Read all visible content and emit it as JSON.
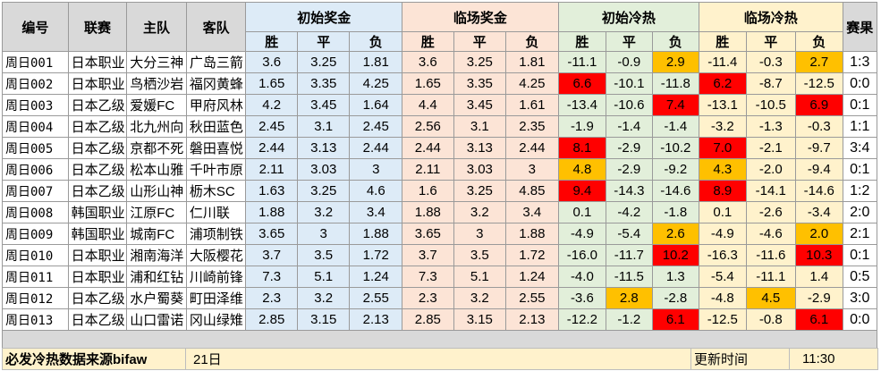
{
  "header": {
    "col_id": "编号",
    "col_league": "联赛",
    "col_home": "主队",
    "col_away": "客队",
    "group_init_odds": "初始奖金",
    "group_live_odds": "临场奖金",
    "group_init_heat": "初始冷热",
    "group_live_heat": "临场冷热",
    "col_result": "赛果",
    "sub_win": "胜",
    "sub_draw": "平",
    "sub_lose": "负"
  },
  "colors": {
    "header_gray": "#d9d9d9",
    "odds_blue": "#ddebf7",
    "odds_peach": "#fce4d6",
    "heat_green": "#e2efda",
    "heat_yellow": "#fff2cc",
    "hot_red": "#ff0000",
    "warm_orange": "#ffc000"
  },
  "rows": [
    {
      "id": "周日001",
      "league": "日本职业",
      "home": "大分三神",
      "away": "广岛三箭",
      "init": [
        "3.6",
        "3.25",
        "1.81"
      ],
      "live": [
        "3.6",
        "3.25",
        "1.81"
      ],
      "iheat": [
        "-11.1",
        "-0.9",
        "2.9"
      ],
      "ihl": [
        "",
        "",
        "orange"
      ],
      "lheat": [
        "-11.4",
        "-0.3",
        "2.7"
      ],
      "lhl": [
        "",
        "",
        "orange"
      ],
      "result": "1:3"
    },
    {
      "id": "周日002",
      "league": "日本职业",
      "home": "鸟栖沙岩",
      "away": "福冈黄蜂",
      "init": [
        "1.65",
        "3.35",
        "4.25"
      ],
      "live": [
        "1.65",
        "3.35",
        "4.25"
      ],
      "iheat": [
        "6.6",
        "-10.1",
        "-11.8"
      ],
      "ihl": [
        "red",
        "",
        ""
      ],
      "lheat": [
        "6.2",
        "-8.7",
        "-12.5"
      ],
      "lhl": [
        "red",
        "",
        ""
      ],
      "result": "0:0"
    },
    {
      "id": "周日003",
      "league": "日本乙级",
      "home": "爱媛FC",
      "away": "甲府风林",
      "init": [
        "4.2",
        "3.45",
        "1.64"
      ],
      "live": [
        "4.4",
        "3.45",
        "1.61"
      ],
      "iheat": [
        "-13.4",
        "-10.6",
        "7.4"
      ],
      "ihl": [
        "",
        "",
        "red"
      ],
      "lheat": [
        "-13.1",
        "-10.5",
        "6.9"
      ],
      "lhl": [
        "",
        "",
        "red"
      ],
      "result": "0:1"
    },
    {
      "id": "周日004",
      "league": "日本乙级",
      "home": "北九州向",
      "away": "秋田蓝色",
      "init": [
        "2.45",
        "3.1",
        "2.45"
      ],
      "live": [
        "2.56",
        "3.1",
        "2.35"
      ],
      "iheat": [
        "-1.9",
        "-1.4",
        "-1.4"
      ],
      "ihl": [
        "",
        "",
        ""
      ],
      "lheat": [
        "-3.2",
        "-1.3",
        "-0.3"
      ],
      "lhl": [
        "",
        "",
        ""
      ],
      "result": "1:1"
    },
    {
      "id": "周日005",
      "league": "日本乙级",
      "home": "京都不死",
      "away": "磐田喜悦",
      "init": [
        "2.44",
        "3.13",
        "2.44"
      ],
      "live": [
        "2.44",
        "3.13",
        "2.44"
      ],
      "iheat": [
        "8.1",
        "-2.9",
        "-10.2"
      ],
      "ihl": [
        "red",
        "",
        ""
      ],
      "lheat": [
        "7.0",
        "-2.1",
        "-9.7"
      ],
      "lhl": [
        "red",
        "",
        ""
      ],
      "result": "3:4"
    },
    {
      "id": "周日006",
      "league": "日本乙级",
      "home": "松本山雅",
      "away": "千叶市原",
      "init": [
        "2.11",
        "3.03",
        "3"
      ],
      "live": [
        "2.11",
        "3.03",
        "3"
      ],
      "iheat": [
        "4.8",
        "-2.9",
        "-9.2"
      ],
      "ihl": [
        "orange",
        "",
        ""
      ],
      "lheat": [
        "4.3",
        "-2.0",
        "-9.4"
      ],
      "lhl": [
        "orange",
        "",
        ""
      ],
      "result": "0:1"
    },
    {
      "id": "周日007",
      "league": "日本乙级",
      "home": "山形山神",
      "away": "枥木SC",
      "init": [
        "1.63",
        "3.25",
        "4.6"
      ],
      "live": [
        "1.6",
        "3.25",
        "4.85"
      ],
      "iheat": [
        "9.4",
        "-14.3",
        "-14.6"
      ],
      "ihl": [
        "red",
        "",
        ""
      ],
      "lheat": [
        "8.9",
        "-14.1",
        "-14.6"
      ],
      "lhl": [
        "red",
        "",
        ""
      ],
      "result": "1:2"
    },
    {
      "id": "周日008",
      "league": "韩国职业",
      "home": "江原FC",
      "away": "仁川联",
      "init": [
        "1.88",
        "3.2",
        "3.4"
      ],
      "live": [
        "1.88",
        "3.2",
        "3.4"
      ],
      "iheat": [
        "0.1",
        "-4.2",
        "-1.8"
      ],
      "ihl": [
        "",
        "",
        ""
      ],
      "lheat": [
        "0.1",
        "-2.6",
        "-3.4"
      ],
      "lhl": [
        "",
        "",
        ""
      ],
      "result": "2:0"
    },
    {
      "id": "周日009",
      "league": "韩国职业",
      "home": "城南FC",
      "away": "浦项制铁",
      "init": [
        "3.65",
        "3",
        "1.88"
      ],
      "live": [
        "3.65",
        "3",
        "1.88"
      ],
      "iheat": [
        "-4.9",
        "-5.4",
        "2.6"
      ],
      "ihl": [
        "",
        "",
        "orange"
      ],
      "lheat": [
        "-4.9",
        "-4.6",
        "2.0"
      ],
      "lhl": [
        "",
        "",
        "orange"
      ],
      "result": "2:1"
    },
    {
      "id": "周日010",
      "league": "日本职业",
      "home": "湘南海洋",
      "away": "大阪樱花",
      "init": [
        "3.7",
        "3.5",
        "1.72"
      ],
      "live": [
        "3.7",
        "3.5",
        "1.72"
      ],
      "iheat": [
        "-16.0",
        "-11.7",
        "10.2"
      ],
      "ihl": [
        "",
        "",
        "red"
      ],
      "lheat": [
        "-16.3",
        "-11.6",
        "10.3"
      ],
      "lhl": [
        "",
        "",
        "red"
      ],
      "result": "0:1"
    },
    {
      "id": "周日011",
      "league": "日本职业",
      "home": "浦和红钻",
      "away": "川崎前锋",
      "init": [
        "7.3",
        "5.1",
        "1.24"
      ],
      "live": [
        "7.3",
        "5.1",
        "1.24"
      ],
      "iheat": [
        "-4.0",
        "-11.5",
        "1.3"
      ],
      "ihl": [
        "",
        "",
        ""
      ],
      "lheat": [
        "-5.4",
        "-11.1",
        "1.4"
      ],
      "lhl": [
        "",
        "",
        ""
      ],
      "result": "0:5"
    },
    {
      "id": "周日012",
      "league": "日本乙级",
      "home": "水户蜀葵",
      "away": "町田泽维",
      "init": [
        "2.3",
        "3.2",
        "2.55"
      ],
      "live": [
        "2.3",
        "3.2",
        "2.55"
      ],
      "iheat": [
        "-3.6",
        "2.8",
        "-2.8"
      ],
      "ihl": [
        "",
        "orange",
        ""
      ],
      "lheat": [
        "-4.8",
        "4.5",
        "-2.9"
      ],
      "lhl": [
        "",
        "orange",
        ""
      ],
      "result": "3:0"
    },
    {
      "id": "周日013",
      "league": "日本乙级",
      "home": "山口雷诺",
      "away": "冈山绿雉",
      "init": [
        "2.85",
        "3.15",
        "2.13"
      ],
      "live": [
        "2.85",
        "3.15",
        "2.13"
      ],
      "iheat": [
        "-12.2",
        "-1.2",
        "6.1"
      ],
      "ihl": [
        "",
        "",
        "red"
      ],
      "lheat": [
        "-12.5",
        "-0.8",
        "6.1"
      ],
      "lhl": [
        "",
        "",
        "red"
      ],
      "result": "0:0"
    }
  ],
  "footer": {
    "source": "必发冷热数据来源bifaw",
    "date": "21日",
    "update_label": "更新时间",
    "update_time": "11:30"
  }
}
